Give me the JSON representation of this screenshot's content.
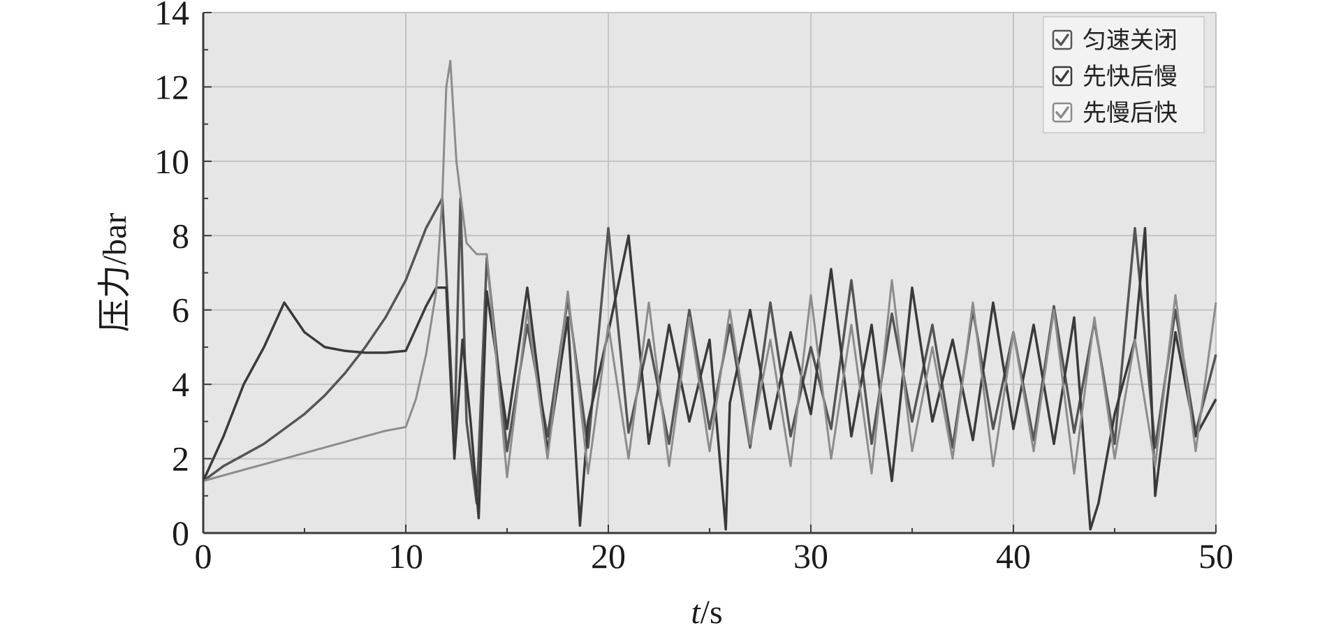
{
  "chart_data": {
    "type": "line",
    "xlabel_italic": "t",
    "xlabel_unit": "/s",
    "ylabel": "压力/bar",
    "xlim": [
      0,
      50
    ],
    "ylim": [
      0,
      14
    ],
    "xticks": [
      "0",
      "10",
      "20",
      "30",
      "40",
      "50"
    ],
    "yticks": [
      "0",
      "2",
      "4",
      "6",
      "8",
      "10",
      "12",
      "14"
    ],
    "grid": true,
    "legend_position": "top-right",
    "series": [
      {
        "name": "匀速关闭",
        "color": "#555555",
        "x": [
          0,
          1,
          2,
          3,
          4,
          5,
          6,
          7,
          8,
          9,
          10,
          11,
          11.8,
          12.0,
          12.4,
          12.7,
          13.0,
          13.5,
          14,
          15,
          16,
          17,
          18,
          19,
          20,
          21,
          22,
          23,
          24,
          25,
          26,
          27,
          28,
          29,
          30,
          31,
          32,
          33,
          34,
          35,
          36,
          37,
          38,
          39,
          40,
          41,
          42,
          43,
          44,
          45,
          46,
          47,
          48,
          49,
          50
        ],
        "y": [
          1.4,
          1.8,
          2.1,
          2.4,
          2.8,
          3.2,
          3.7,
          4.3,
          5.0,
          5.8,
          6.8,
          8.2,
          9.0,
          7.0,
          2.5,
          9.0,
          3.0,
          0.8,
          7.4,
          2.2,
          5.6,
          2.6,
          6.3,
          2.3,
          8.2,
          2.7,
          5.2,
          2.4,
          6.0,
          2.8,
          5.6,
          2.3,
          6.2,
          2.6,
          5.0,
          2.8,
          6.8,
          2.4,
          5.9,
          3.0,
          5.6,
          2.3,
          6.0,
          2.8,
          5.4,
          2.5,
          6.1,
          2.7,
          5.7,
          2.4,
          8.2,
          2.3,
          6.0,
          2.7,
          4.8
        ]
      },
      {
        "name": "先快后慢",
        "color": "#3a3a3a",
        "x": [
          0,
          1,
          2,
          3,
          4,
          5,
          6,
          7,
          8,
          9,
          10,
          11,
          11.5,
          12.0,
          12.4,
          12.8,
          13.2,
          13.6,
          14,
          15,
          16,
          17,
          18,
          18.6,
          19,
          20,
          21,
          22,
          23,
          24,
          25,
          25.8,
          26,
          27,
          28,
          29,
          30,
          31,
          32,
          33,
          34,
          35,
          36,
          37,
          38,
          39,
          40,
          41,
          42,
          43,
          43.8,
          44.2,
          45,
          46,
          46.5,
          47,
          48,
          49,
          50
        ],
        "y": [
          1.4,
          2.6,
          4.0,
          5.0,
          6.2,
          5.4,
          5.0,
          4.9,
          4.85,
          4.85,
          4.9,
          6.1,
          6.6,
          6.6,
          2.0,
          5.2,
          3.0,
          0.4,
          6.5,
          2.8,
          6.6,
          2.2,
          5.8,
          0.2,
          3.0,
          5.4,
          8.0,
          2.4,
          5.6,
          3.0,
          5.2,
          0.1,
          3.5,
          6.0,
          2.8,
          5.4,
          3.2,
          7.1,
          2.6,
          5.6,
          1.4,
          6.6,
          3.0,
          5.2,
          2.5,
          6.2,
          2.8,
          5.6,
          2.4,
          5.8,
          0.1,
          0.8,
          3.2,
          5.2,
          8.2,
          1.0,
          5.4,
          2.6,
          3.6
        ]
      },
      {
        "name": "先慢后快",
        "color": "#8c8c8c",
        "x": [
          0,
          1,
          2,
          3,
          4,
          5,
          6,
          7,
          8,
          9,
          10,
          10.5,
          11,
          11.5,
          11.8,
          12.0,
          12.2,
          12.5,
          13,
          13.5,
          14,
          15,
          16,
          17,
          18,
          19,
          20,
          21,
          22,
          23,
          24,
          25,
          26,
          27,
          28,
          29,
          30,
          31,
          32,
          33,
          34,
          35,
          36,
          37,
          38,
          39,
          40,
          41,
          42,
          43,
          44,
          45,
          46,
          47,
          48,
          49,
          50
        ],
        "y": [
          1.4,
          1.55,
          1.7,
          1.85,
          2.0,
          2.15,
          2.3,
          2.45,
          2.6,
          2.75,
          2.85,
          3.6,
          4.8,
          6.5,
          9.0,
          12.0,
          12.7,
          10.0,
          7.8,
          7.5,
          7.5,
          1.5,
          6.0,
          2.0,
          6.5,
          1.6,
          5.6,
          2.0,
          6.2,
          1.8,
          5.8,
          2.2,
          6.0,
          2.4,
          5.2,
          1.8,
          6.4,
          2.0,
          5.6,
          1.6,
          6.8,
          2.2,
          5.0,
          2.0,
          6.2,
          1.8,
          5.4,
          2.2,
          6.0,
          1.6,
          5.8,
          2.0,
          5.2,
          1.8,
          6.4,
          2.2,
          6.2
        ]
      }
    ]
  }
}
